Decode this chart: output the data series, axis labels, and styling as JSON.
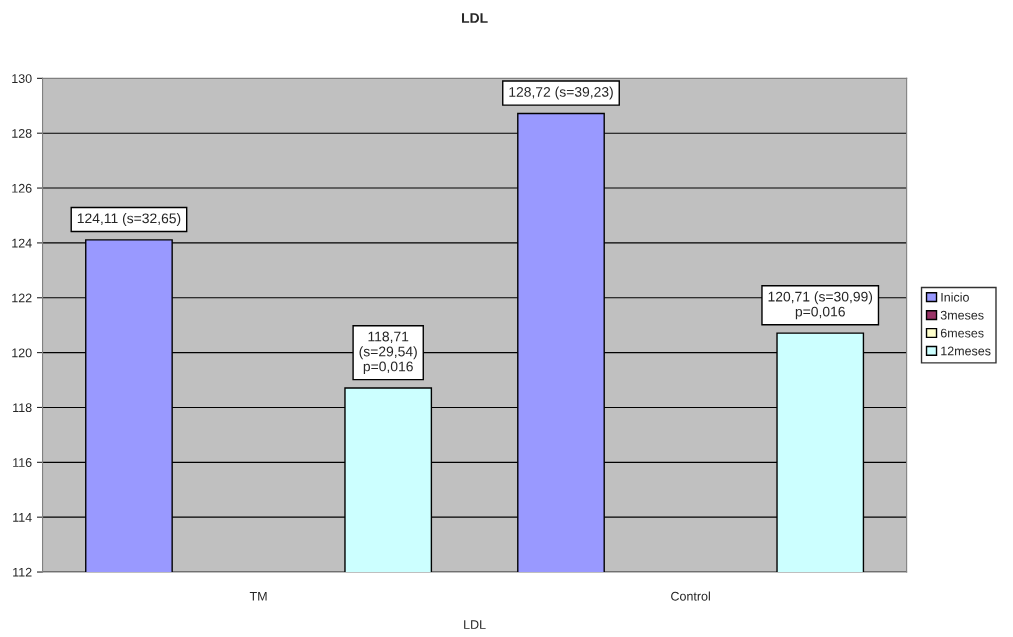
{
  "chart_data": {
    "type": "bar",
    "title": "LDL",
    "xlabel": "LDL",
    "categories": [
      "TM",
      "Control"
    ],
    "series": [
      {
        "name": "Inicio",
        "color": "#9999ff",
        "values": [
          124.11,
          128.72
        ],
        "value_labels": [
          "124,11 (s=32,65)",
          "128,72 (s=39,23)"
        ]
      },
      {
        "name": "3meses",
        "color": "#993366",
        "values": [
          null,
          null
        ]
      },
      {
        "name": "6meses",
        "color": "#ffffcc",
        "values": [
          null,
          null
        ]
      },
      {
        "name": "12meses",
        "color": "#ccffff",
        "values": [
          118.71,
          120.71
        ],
        "value_labels": [
          "118,71\n(s=29,54)\np=0,016",
          "120,71 (s=30,99)\np=0,016"
        ]
      }
    ],
    "ylim": [
      112,
      130
    ],
    "yticks": [
      112,
      114,
      116,
      118,
      120,
      122,
      124,
      126,
      128,
      130
    ],
    "grid": "y",
    "legend": "right"
  }
}
